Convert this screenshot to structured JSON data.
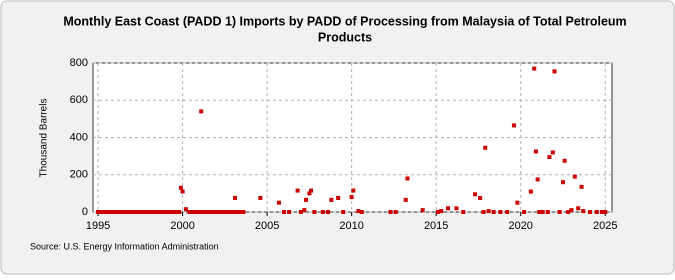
{
  "chart_data": {
    "type": "scatter",
    "title": [
      "Monthly East Coast (PADD 1) Imports by PADD of Processing from Malaysia of Total Petroleum",
      "Products"
    ],
    "y_label": "Thousand Barrels",
    "source": "Source: U.S. Energy Information Administration",
    "color": "#cc0000",
    "grid": true,
    "xlim": [
      1994.7,
      2025.4
    ],
    "xticks": [
      1995,
      2000,
      2005,
      2010,
      2015,
      2020,
      2025
    ],
    "ylim": [
      0,
      800
    ],
    "yticks": [
      0,
      200,
      400,
      600,
      800
    ],
    "x": [
      1995.0,
      1995.2,
      1995.4,
      1995.6,
      1995.8,
      1996.0,
      1996.2,
      1996.4,
      1996.6,
      1996.8,
      1997.0,
      1997.2,
      1997.4,
      1997.6,
      1997.8,
      1998.0,
      1998.2,
      1998.4,
      1998.6,
      1998.8,
      1999.0,
      1999.2,
      1999.4,
      1999.6,
      1999.8,
      1999.9,
      2000.0,
      2000.2,
      2000.4,
      2000.6,
      2000.8,
      2001.0,
      2001.1,
      2001.2,
      2001.4,
      2001.6,
      2001.8,
      2002.0,
      2002.2,
      2002.4,
      2002.6,
      2002.8,
      2003.0,
      2003.1,
      2003.2,
      2003.4,
      2003.6,
      2004.6,
      2005.7,
      2006.0,
      2006.3,
      2006.8,
      2007.0,
      2007.2,
      2007.3,
      2007.5,
      2007.6,
      2007.8,
      2008.3,
      2008.6,
      2008.8,
      2009.2,
      2009.5,
      2010.0,
      2010.1,
      2010.4,
      2010.6,
      2012.3,
      2012.6,
      2013.2,
      2013.3,
      2014.2,
      2015.1,
      2015.3,
      2015.7,
      2016.2,
      2016.6,
      2017.3,
      2017.6,
      2017.8,
      2017.9,
      2018.1,
      2018.4,
      2018.8,
      2019.2,
      2019.6,
      2019.8,
      2020.2,
      2020.6,
      2020.8,
      2020.9,
      2021.0,
      2021.1,
      2021.3,
      2021.6,
      2021.7,
      2021.9,
      2022.0,
      2022.3,
      2022.5,
      2022.6,
      2022.8,
      2023.0,
      2023.2,
      2023.4,
      2023.6,
      2023.7,
      2024.1,
      2024.5,
      2024.8,
      2025.0
    ],
    "values": [
      0,
      0,
      0,
      0,
      0,
      0,
      0,
      0,
      0,
      0,
      0,
      0,
      0,
      0,
      0,
      0,
      0,
      0,
      0,
      0,
      0,
      0,
      0,
      0,
      0,
      130,
      110,
      15,
      0,
      0,
      0,
      0,
      540,
      0,
      0,
      0,
      0,
      0,
      0,
      0,
      0,
      0,
      0,
      75,
      0,
      0,
      0,
      75,
      50,
      0,
      0,
      115,
      0,
      10,
      65,
      100,
      115,
      0,
      0,
      0,
      65,
      75,
      0,
      80,
      115,
      5,
      0,
      0,
      0,
      65,
      180,
      10,
      0,
      5,
      20,
      20,
      0,
      95,
      75,
      0,
      345,
      5,
      0,
      0,
      0,
      465,
      50,
      0,
      110,
      770,
      325,
      175,
      0,
      0,
      0,
      295,
      320,
      755,
      0,
      160,
      275,
      0,
      10,
      190,
      20,
      135,
      5,
      0,
      0,
      0,
      0
    ]
  }
}
